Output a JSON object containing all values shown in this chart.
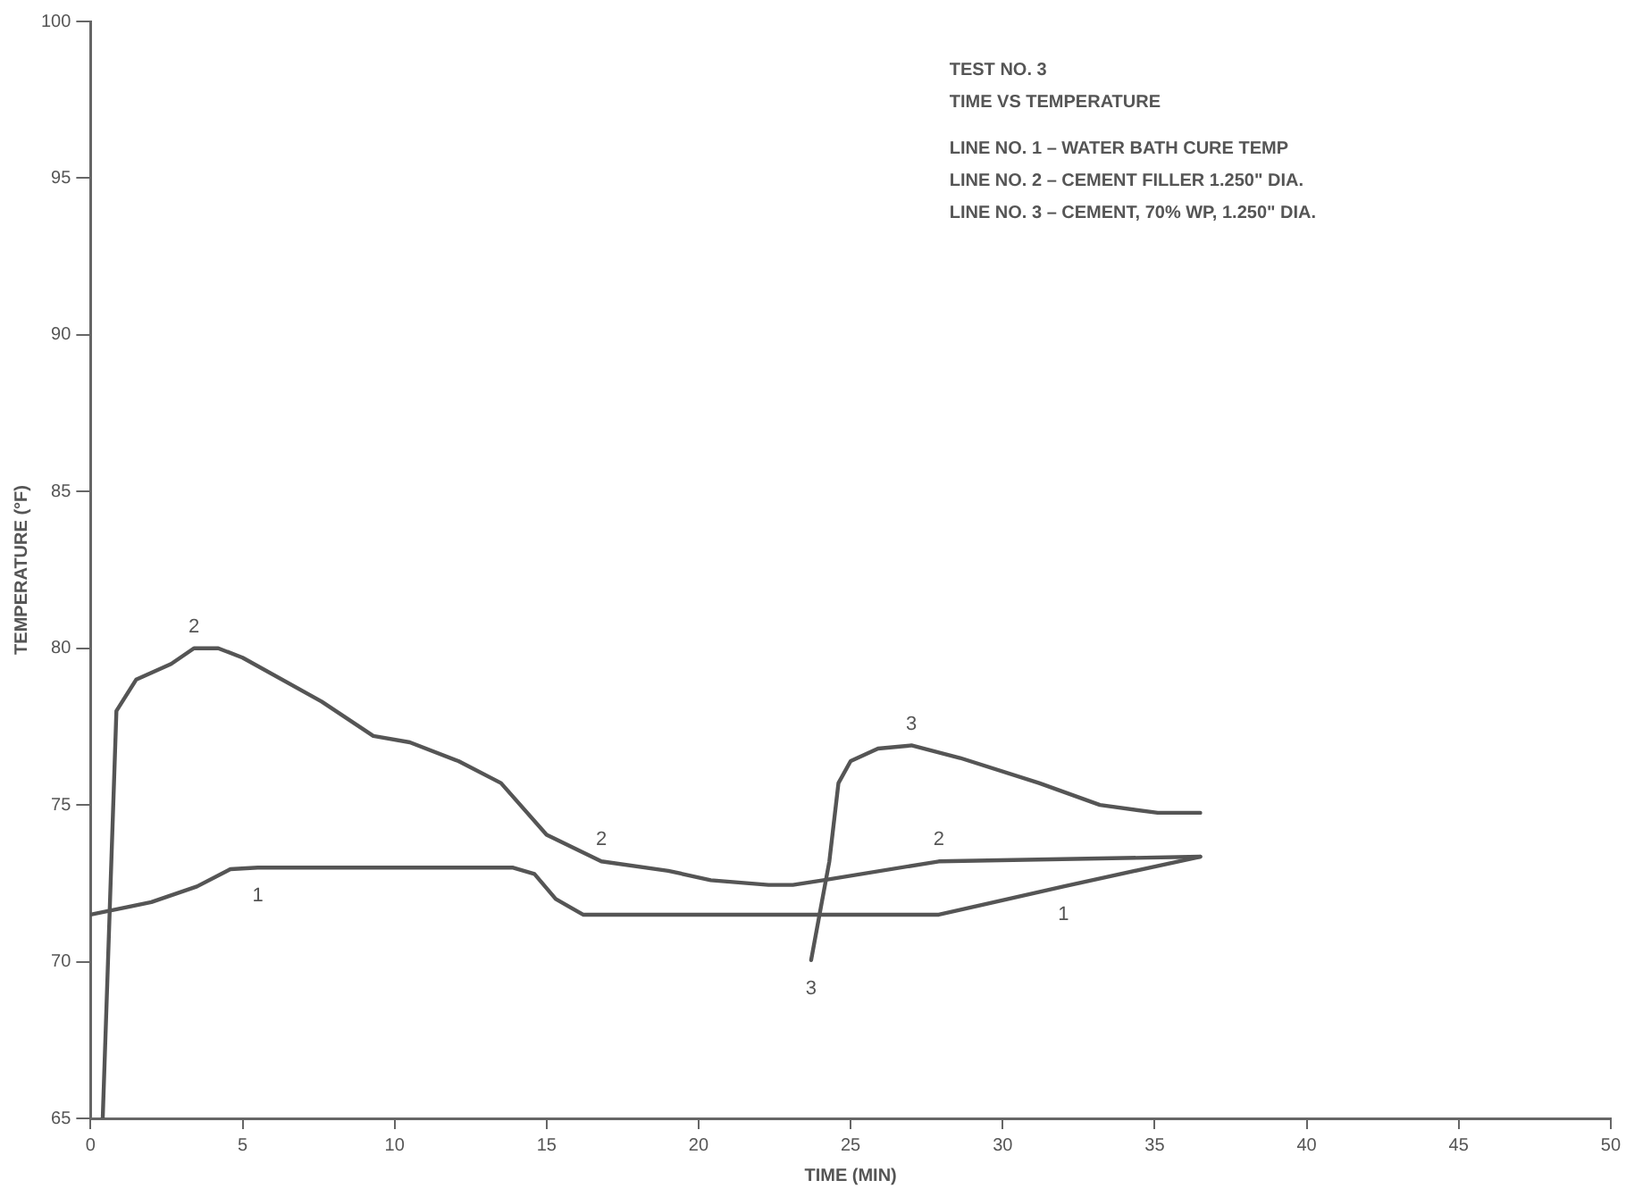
{
  "chart_data": {
    "type": "line",
    "title": "TEST NO. 3",
    "subtitle": "TIME VS TEMPERATURE",
    "xlabel": "TIME (MIN)",
    "ylabel": "TEMPERATURE (°F)",
    "xlim": [
      0,
      50
    ],
    "xticks": [
      0,
      5,
      10,
      15,
      20,
      25,
      30,
      35,
      40,
      45,
      50
    ],
    "ylim": [
      65,
      100
    ],
    "yticks": [
      65,
      70,
      75,
      80,
      85,
      90,
      95,
      100
    ],
    "grid": false,
    "legend": false,
    "marker": "none",
    "line_style": "solid",
    "series": [
      {
        "color": "#555555",
        "x": [
          0,
          0.5,
          2,
          3.5,
          4.6,
          5.5,
          13.9,
          14.6,
          15.3,
          16.2,
          20,
          27.9,
          32,
          36.5
        ],
        "values": [
          71.5,
          71.6,
          71.9,
          72.4,
          72.95,
          73,
          73,
          72.8,
          72,
          71.5,
          71.5,
          71.5,
          72.4,
          73.35
        ]
      },
      {
        "color": "#555555",
        "x": [
          0.4,
          0.85,
          1.5,
          2.65,
          3.4,
          4.2,
          5,
          7.6,
          9.3,
          10.5,
          12.1,
          13.5,
          15,
          16.8,
          19,
          20.4,
          22.3,
          23.1,
          24.1,
          27.9,
          36.5
        ],
        "values": [
          65,
          78,
          79,
          79.5,
          80,
          80,
          79.7,
          78.3,
          77.2,
          77,
          76.4,
          75.7,
          74.05,
          73.2,
          72.9,
          72.6,
          72.45,
          72.45,
          72.6,
          73.2,
          73.35
        ]
      },
      {
        "color": "#555555",
        "x": [
          23.7,
          24.3,
          24.6,
          25,
          25.9,
          27,
          28.6,
          31.2,
          33.2,
          35.1,
          36.5
        ],
        "values": [
          70.05,
          73.2,
          75.7,
          76.4,
          76.8,
          76.9,
          76.5,
          75.7,
          75,
          74.75,
          74.75
        ]
      }
    ],
    "annotations": [
      "LINE NO. 1 – WATER BATH CURE TEMP",
      "LINE NO. 2 – CEMENT FILLER 1.250\" DIA.",
      "LINE NO. 3 – CEMENT, 70% WP, 1.250\" DIA.",
      {
        "text": "1",
        "x": 5.5,
        "y": 73
      },
      {
        "text": "1",
        "x": 32,
        "y": 72.4
      },
      {
        "text": "2",
        "x": 3.4,
        "y": 80
      },
      {
        "text": "2",
        "x": 16.8,
        "y": 73.2
      },
      {
        "text": "2",
        "x": 27.9,
        "y": 73.2
      },
      {
        "text": "3",
        "x": 27,
        "y": 76.9
      },
      {
        "text": "3",
        "x": 23.7,
        "y": 70.05
      }
    ]
  }
}
